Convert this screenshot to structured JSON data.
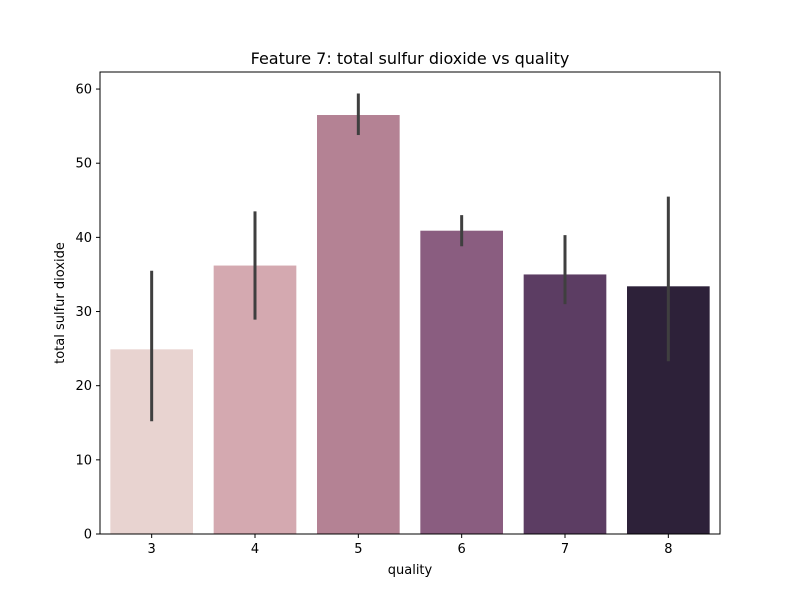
{
  "chart_data": {
    "type": "bar",
    "title": "Feature 7: total sulfur dioxide vs quality",
    "xlabel": "quality",
    "ylabel": "total sulfur dioxide",
    "categories": [
      "3",
      "4",
      "5",
      "6",
      "7",
      "8"
    ],
    "values": [
      24.9,
      36.2,
      56.5,
      40.9,
      35.0,
      33.4
    ],
    "error_low": [
      15.2,
      28.9,
      53.8,
      38.8,
      31.0,
      23.3
    ],
    "error_high": [
      35.5,
      43.5,
      59.4,
      43.0,
      40.3,
      45.5
    ],
    "ylim": [
      0,
      62.3
    ],
    "yticks": [
      0,
      10,
      20,
      30,
      40,
      50,
      60
    ],
    "grid": false,
    "legend": "none",
    "colors": [
      "#e8d3d0",
      "#d4a9b0",
      "#b48294",
      "#8a5d80",
      "#5c3d63",
      "#2d2139"
    ],
    "error_color": "#3f3f3f"
  }
}
